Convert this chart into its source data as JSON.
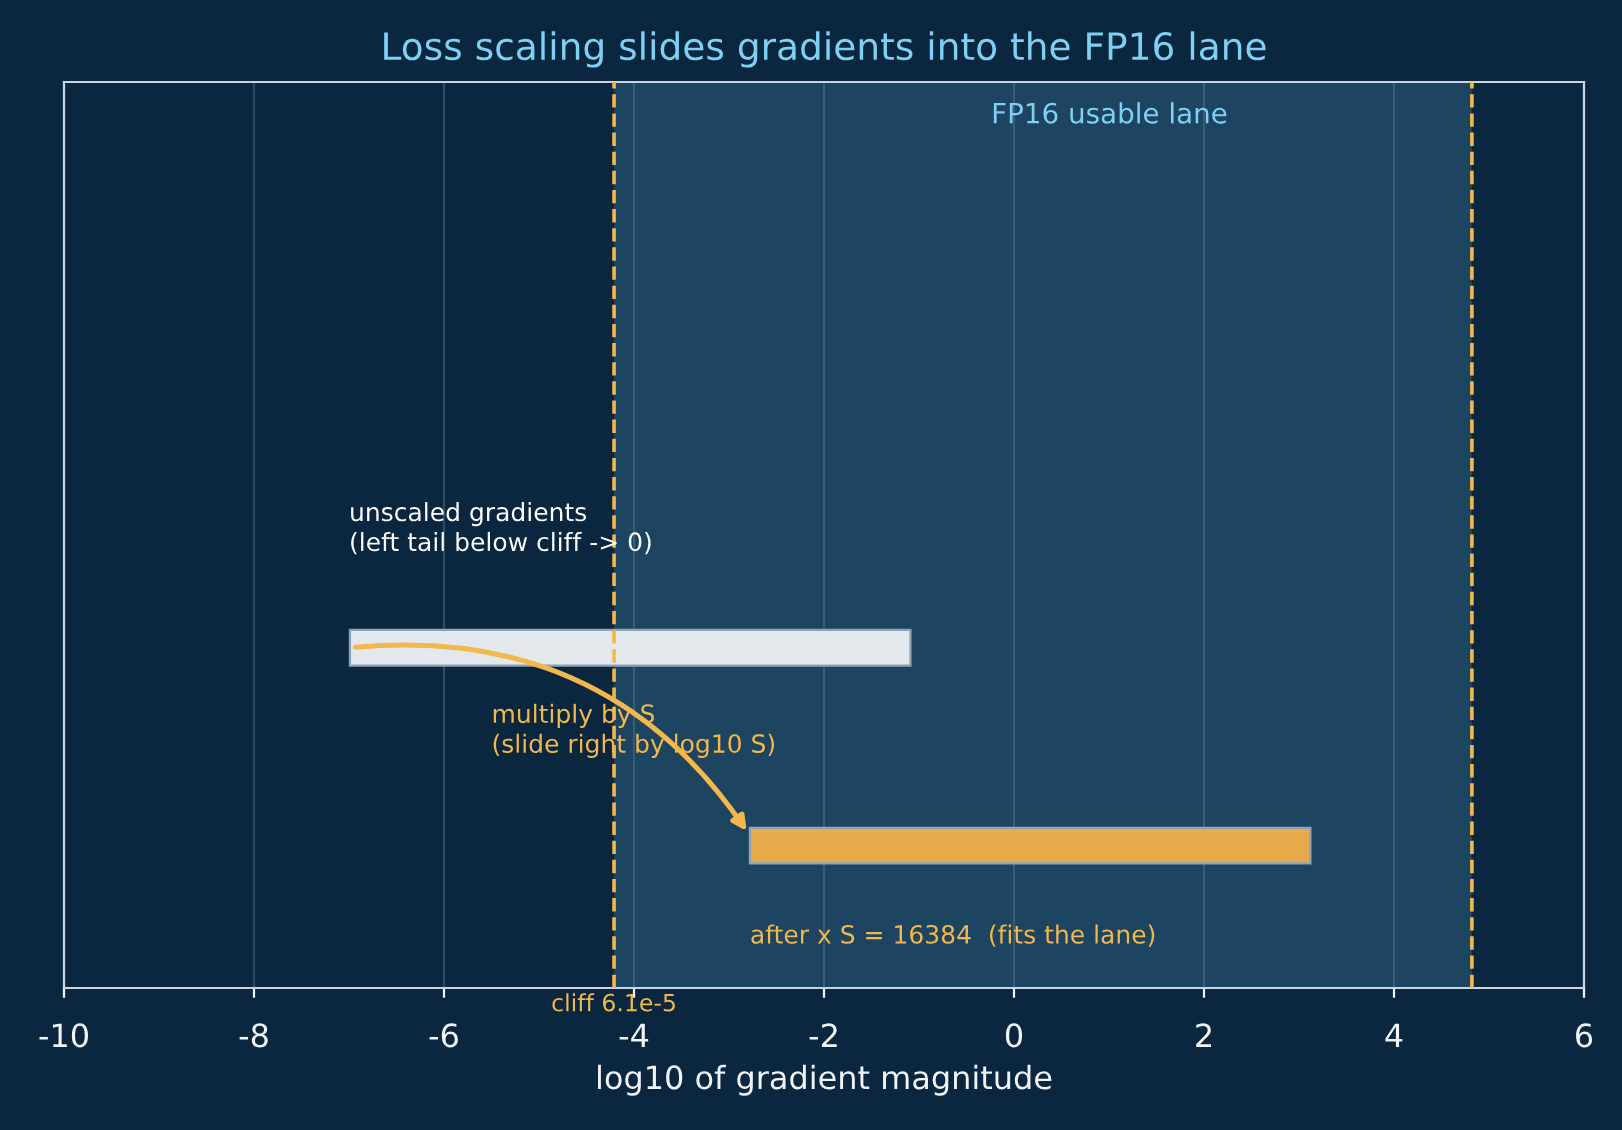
{
  "chart_data": {
    "type": "bar",
    "orientation": "horizontal",
    "title": "Loss scaling slides gradients into the FP16 lane",
    "xlabel": "log10 of gradient magnitude",
    "categories": [
      null,
      null
    ],
    "base": [
      -6.99,
      -2.78
    ],
    "values": [
      5.9,
      5.9
    ],
    "colors": [
      "#e3e8ec",
      "#e8a94a"
    ],
    "xlim": [
      -10,
      6
    ],
    "xticks": [
      -10,
      -8,
      -6,
      -4,
      -2,
      0,
      2,
      4,
      6
    ],
    "grid": "x",
    "tick_labels": "x",
    "bands": [
      {
        "axis": "x",
        "from": -4.21,
        "to": 4.82,
        "label": "FP16 usable lane",
        "color": "#1d4562"
      }
    ],
    "ref_lines": [
      {
        "axis": "x",
        "value": -4.21,
        "label": "cliff 6.1e-5",
        "color": "#f2b84b",
        "line_style": "dashed"
      },
      {
        "axis": "x",
        "value": 4.82,
        "label": null,
        "color": "#f2b84b",
        "line_style": "dashed"
      }
    ],
    "annotations": [
      "unscaled gradients\n(left tail below cliff -> 0)",
      "multiply by S\n(slide right by log10 S)",
      "after x S = 16384  (fits the lane)"
    ]
  }
}
